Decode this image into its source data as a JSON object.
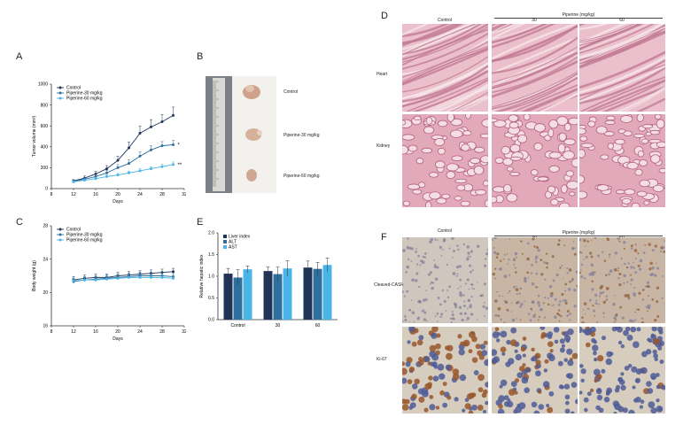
{
  "panels": {
    "A": "A",
    "B": "B",
    "C": "C",
    "D": "D",
    "E": "E",
    "F": "F"
  },
  "colors": {
    "control": "#1f3457",
    "p30": "#2e6f9e",
    "p60": "#49b4e6",
    "he_bg": "#e9b9c6",
    "he_dark": "#b4587a",
    "ihc_bg": "#d8ccc0",
    "ihc_brown": "#8a4a1c",
    "ihc_blue": "#4a5890"
  },
  "chart_data": [
    {
      "panel": "A",
      "type": "line",
      "xlabel": "Days",
      "ylabel": "Tumor volume (mm³)",
      "xlim": [
        8,
        32
      ],
      "ylim": [
        0,
        1000
      ],
      "xticks": [
        8,
        12,
        16,
        20,
        24,
        28,
        32
      ],
      "yticks": [
        0,
        200,
        400,
        600,
        800,
        1000
      ],
      "legend_position": "top-left",
      "x": [
        12,
        14,
        16,
        18,
        20,
        22,
        24,
        26,
        28,
        30
      ],
      "series": [
        {
          "name": "Control",
          "values": [
            75,
            100,
            140,
            190,
            270,
            390,
            530,
            590,
            640,
            700
          ],
          "errors": [
            10,
            20,
            25,
            30,
            40,
            55,
            70,
            70,
            70,
            80
          ]
        },
        {
          "name": "Piperine-30 mg/kg",
          "values": [
            70,
            90,
            115,
            150,
            200,
            240,
            310,
            370,
            410,
            420
          ],
          "errors": [
            10,
            15,
            20,
            25,
            30,
            35,
            40,
            40,
            40,
            40
          ]
        },
        {
          "name": "Piperine-60 mg/kg",
          "values": [
            65,
            80,
            95,
            115,
            130,
            150,
            170,
            190,
            210,
            230
          ],
          "errors": [
            8,
            10,
            12,
            15,
            15,
            18,
            20,
            20,
            22,
            25
          ]
        }
      ],
      "annotations": [
        "*",
        "**"
      ]
    },
    {
      "panel": "C",
      "type": "line",
      "xlabel": "Days",
      "ylabel": "Body weight (g)",
      "xlim": [
        8,
        32
      ],
      "ylim": [
        16,
        28
      ],
      "xticks": [
        8,
        12,
        16,
        20,
        24,
        28,
        32
      ],
      "yticks": [
        16,
        20,
        24,
        28
      ],
      "legend_position": "top-left",
      "x": [
        12,
        14,
        16,
        18,
        20,
        22,
        24,
        26,
        28,
        30
      ],
      "series": [
        {
          "name": "Control",
          "values": [
            21.5,
            21.7,
            21.8,
            21.8,
            22.0,
            22.1,
            22.2,
            22.3,
            22.4,
            22.5
          ],
          "errors": [
            0.4,
            0.4,
            0.4,
            0.4,
            0.4,
            0.4,
            0.4,
            0.4,
            0.4,
            0.4
          ]
        },
        {
          "name": "Piperine-30 mg/kg",
          "values": [
            21.3,
            21.5,
            21.6,
            21.7,
            21.8,
            21.9,
            22.0,
            22.0,
            22.0,
            21.9
          ],
          "errors": [
            0.4,
            0.4,
            0.4,
            0.4,
            0.4,
            0.4,
            0.4,
            0.4,
            0.4,
            0.4
          ]
        },
        {
          "name": "Piperine-60 mg/kg",
          "values": [
            21.4,
            21.5,
            21.5,
            21.6,
            21.7,
            21.8,
            21.8,
            21.8,
            21.8,
            21.7
          ],
          "errors": [
            0.4,
            0.4,
            0.4,
            0.4,
            0.4,
            0.4,
            0.4,
            0.4,
            0.4,
            0.4
          ]
        }
      ]
    },
    {
      "panel": "E",
      "type": "bar",
      "ylabel": "Relative hepatic index",
      "ylim": [
        0,
        2.0
      ],
      "yticks": [
        "0.0",
        "0.5",
        "1.0",
        "1.5",
        "2.0"
      ],
      "legend_position": "top-left",
      "categories": [
        "Control",
        "30",
        "60"
      ],
      "series": [
        {
          "name": "Liver index",
          "values": [
            1.06,
            1.12,
            1.2
          ],
          "errors": [
            0.12,
            0.1,
            0.15
          ]
        },
        {
          "name": "ALT",
          "values": [
            0.97,
            1.05,
            1.17
          ],
          "errors": [
            0.18,
            0.16,
            0.15
          ]
        },
        {
          "name": "AST",
          "values": [
            1.16,
            1.18,
            1.26
          ],
          "errors": [
            0.08,
            0.18,
            0.16
          ]
        }
      ]
    }
  ],
  "panel_b": {
    "labels": [
      "Control",
      "Piperine-30 mg/kg",
      "Piperine-60 mg/kg"
    ]
  },
  "panel_d": {
    "group_header": "Piperine (mg/kg)",
    "columns": [
      "Control",
      "30",
      "60"
    ],
    "rows": [
      "Heart",
      "Kidney"
    ]
  },
  "panel_f": {
    "group_header": "Piperine (mg/kg)",
    "columns": [
      "Control",
      "30",
      "60"
    ],
    "rows": [
      "Cleaved-CASP3",
      "Ki-67"
    ]
  }
}
